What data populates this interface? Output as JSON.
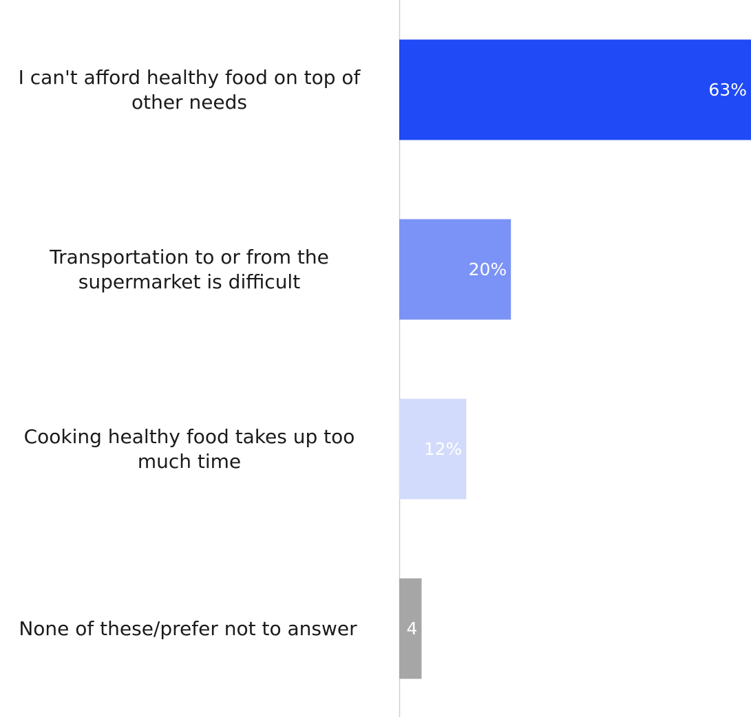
{
  "chart_data": {
    "type": "bar",
    "orientation": "horizontal",
    "categories": [
      [
        "I can't afford healthy food on top of",
        "other needs"
      ],
      [
        "Transportation to or from the",
        "supermarket is difficult"
      ],
      [
        "Cooking healthy food takes up too",
        "much time"
      ],
      [
        "None of these/prefer not to answer"
      ]
    ],
    "values": [
      63,
      20,
      12,
      4
    ],
    "data_labels": [
      "63%",
      "20%",
      "12%",
      "4"
    ],
    "unit": "%",
    "xlim": [
      0,
      63
    ],
    "grid": false,
    "legend": "none",
    "colors": [
      "#1f4af6",
      "#7b92f6",
      "#d3dbfc",
      "#a6a6a6"
    ],
    "label_colors": [
      "#ffffff",
      "#ffffff",
      "#ffffff",
      "#ffffff"
    ],
    "axis_color": "#d0d0d0"
  }
}
